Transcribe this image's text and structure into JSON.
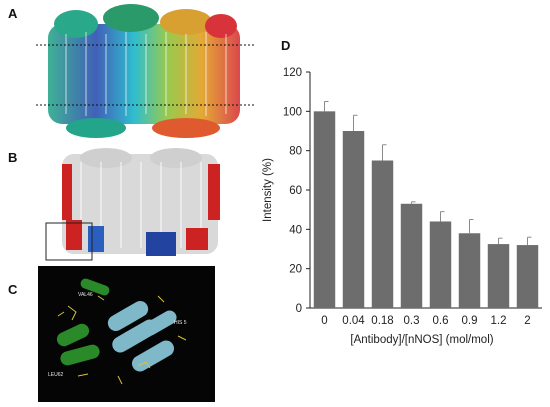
{
  "panels": {
    "a": "A",
    "b": "B",
    "c": "C",
    "d": "D"
  },
  "panel_c_labels": [
    "VAL46",
    "HIS 5",
    "LEU62"
  ],
  "chart_data": {
    "type": "bar",
    "categories": [
      "0",
      "0.04",
      "0.18",
      "0.3",
      "0.6",
      "0.9",
      "1.2",
      "2"
    ],
    "values": [
      100,
      90,
      75,
      53,
      44,
      38,
      32.5,
      32
    ],
    "errors": [
      5,
      8,
      8,
      1,
      5,
      7,
      3,
      4
    ],
    "xlabel": "[Antibody]/[nNOS] (mol/mol)",
    "ylabel": "Intensity (%)",
    "ylim": [
      0,
      120
    ],
    "yticks": [
      0,
      20,
      40,
      60,
      80,
      100,
      120
    ],
    "bar_color": "#6d6d6d"
  }
}
